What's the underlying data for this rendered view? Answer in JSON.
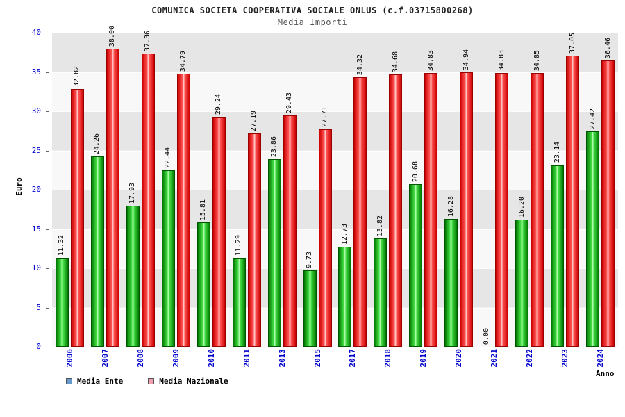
{
  "chart_data": {
    "type": "bar",
    "title": "COMUNICA SOCIETA COOPERATIVA SOCIALE ONLUS (c.f.03715800268)",
    "subtitle": "Media Importi",
    "xlabel": "Anno",
    "ylabel": "Euro",
    "ylim": [
      0,
      40
    ],
    "yticks": [
      0,
      5,
      10,
      15,
      20,
      25,
      30,
      35,
      40
    ],
    "grid": "horizontal-bands",
    "legend_position": "bottom-left",
    "categories": [
      "2006",
      "2007",
      "2008",
      "2009",
      "2010",
      "2011",
      "2013",
      "2015",
      "2017",
      "2018",
      "2019",
      "2020",
      "2021",
      "2022",
      "2023",
      "2024"
    ],
    "series": [
      {
        "name": "Media Ente",
        "legend_color": "#6699cc",
        "bar_color": "#00bb00",
        "values": [
          11.32,
          24.26,
          17.93,
          22.44,
          15.81,
          11.29,
          23.86,
          9.73,
          12.73,
          13.82,
          20.68,
          16.28,
          0.0,
          16.2,
          23.14,
          27.42
        ]
      },
      {
        "name": "Media Nazionale",
        "legend_color": "#f2a0b0",
        "bar_color": "#ee2222",
        "values": [
          32.82,
          38.0,
          37.36,
          34.79,
          29.24,
          27.19,
          29.43,
          27.71,
          34.32,
          34.68,
          34.83,
          34.94,
          34.83,
          34.85,
          37.05,
          36.46
        ]
      }
    ],
    "colors": {
      "tick_label": "#0000cc",
      "value_label": "#000000",
      "band_dark": "#e6e6e6",
      "band_light": "#f8f8f8"
    }
  }
}
